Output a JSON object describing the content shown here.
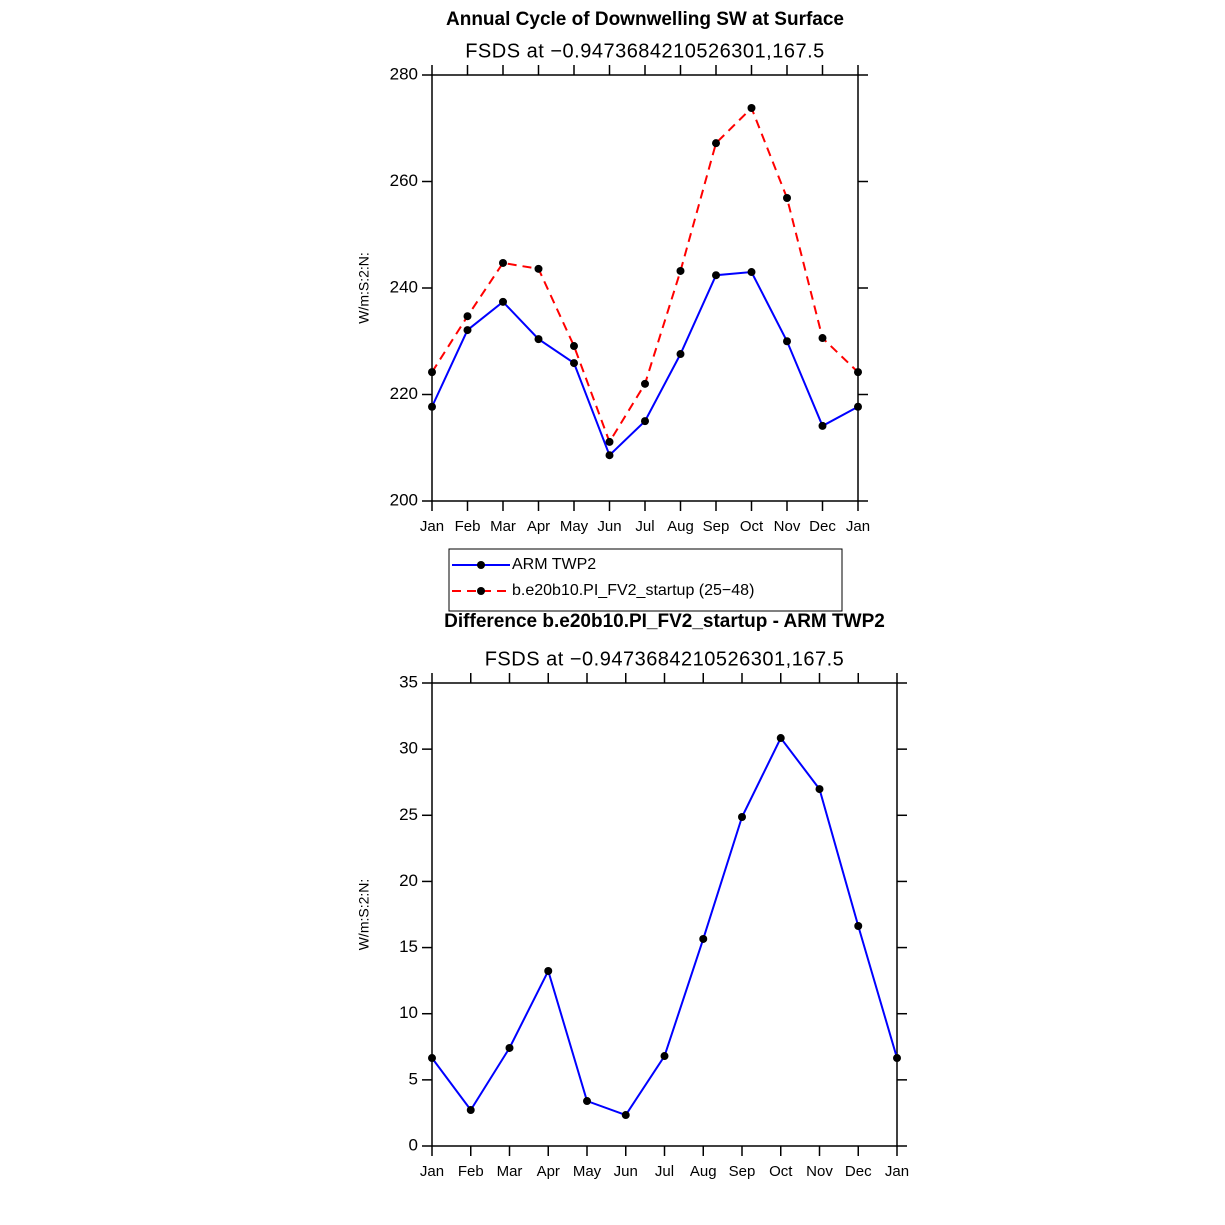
{
  "chart_data": [
    {
      "type": "line",
      "title": "Annual Cycle of Downwelling SW at Surface",
      "subtitle": "FSDS at −0.9473684210526301,167.5",
      "y_label": "W/m:S:2:N:",
      "categories": [
        "Jan",
        "Feb",
        "Mar",
        "Apr",
        "May",
        "Jun",
        "Jul",
        "Aug",
        "Sep",
        "Oct",
        "Nov",
        "Dec",
        "Jan"
      ],
      "series": [
        {
          "name": "ARM TWP2",
          "color": "#0000ff",
          "dashed": false,
          "values": [
            217.7,
            232.1,
            237.4,
            230.4,
            225.9,
            208.6,
            215.0,
            227.6,
            242.4,
            243.0,
            230.0,
            214.1,
            217.7
          ]
        },
        {
          "name": "b.e20b10.PI_FV2_startup (25−48)",
          "color": "#ff0000",
          "dashed": true,
          "values": [
            224.2,
            234.7,
            244.7,
            243.6,
            229.1,
            211.1,
            222.0,
            243.2,
            267.2,
            273.8,
            256.9,
            230.6,
            224.2
          ]
        }
      ],
      "ylim": [
        200,
        280
      ],
      "yticks": [
        200,
        220,
        240,
        260,
        280
      ],
      "legend": "below"
    },
    {
      "type": "line",
      "title": "Difference b.e20b10.PI_FV2_startup - ARM TWP2",
      "subtitle": "FSDS at −0.9473684210526301,167.5",
      "y_label": "W/m:S:2:N:",
      "categories": [
        "Jan",
        "Feb",
        "Mar",
        "Apr",
        "May",
        "Jun",
        "Jul",
        "Aug",
        "Sep",
        "Oct",
        "Nov",
        "Dec",
        "Jan"
      ],
      "series": [
        {
          "color": "#0000ff",
          "dashed": false,
          "values": [
            6.65,
            2.72,
            7.41,
            13.23,
            3.4,
            2.34,
            6.8,
            15.65,
            24.87,
            30.84,
            26.98,
            16.63,
            6.65
          ]
        }
      ],
      "ylim": [
        0,
        35
      ],
      "yticks": [
        0,
        5,
        10,
        15,
        20,
        25,
        30,
        35
      ]
    }
  ]
}
